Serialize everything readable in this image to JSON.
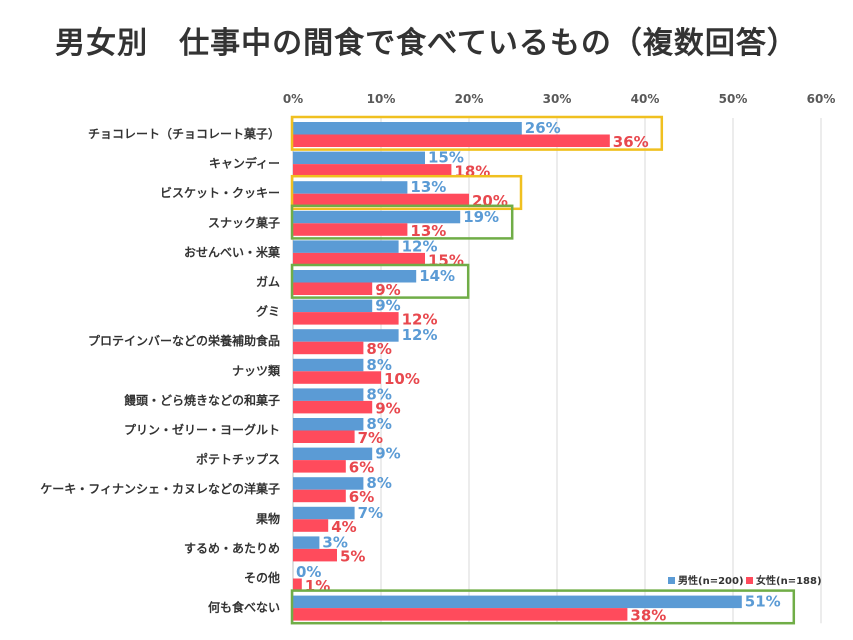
{
  "chart_data": {
    "type": "bar",
    "orientation": "horizontal",
    "title": "男女別　仕事中の間食で食べているもの（複数回答）",
    "ylim": [
      0,
      60
    ],
    "x_ticks": [
      "0%",
      "10%",
      "20%",
      "30%",
      "40%",
      "50%",
      "60%"
    ],
    "grid": true,
    "legend_position": "bottom-right",
    "categories": [
      "チョコレート（チョコレート菓子）",
      "キャンディー",
      "ビスケット・クッキー",
      "スナック菓子",
      "おせんべい・米菓",
      "ガム",
      "グミ",
      "プロテインバーなどの栄養補助食品",
      "ナッツ類",
      "饅頭・どら焼きなどの和菓子",
      "プリン・ゼリー・ヨーグルト",
      "ポテトチップス",
      "ケーキ・フィナンシェ・カヌレなどの洋菓子",
      "果物",
      "するめ・あたりめ",
      "その他",
      "何も食べない"
    ],
    "series": [
      {
        "name": "男性(n=200)",
        "color": "#5b9bd5",
        "values": [
          26,
          15,
          13,
          19,
          12,
          14,
          9,
          12,
          8,
          8,
          8,
          9,
          8,
          7,
          3,
          0,
          51
        ]
      },
      {
        "name": "女性(n=188)",
        "color": "#ff4b5c",
        "values": [
          36,
          18,
          20,
          13,
          15,
          9,
          12,
          8,
          10,
          9,
          7,
          6,
          6,
          4,
          5,
          1,
          38
        ]
      }
    ],
    "label_colors": {
      "male": "#5b9bd5",
      "female": "#e8484e"
    },
    "highlights": [
      {
        "category_index": 0,
        "color": "#f0c020"
      },
      {
        "category_index": 2,
        "color": "#f0c020"
      },
      {
        "category_index": 3,
        "color": "#70ad47"
      },
      {
        "category_index": 5,
        "color": "#70ad47"
      },
      {
        "category_index": 16,
        "color": "#70ad47"
      }
    ]
  }
}
